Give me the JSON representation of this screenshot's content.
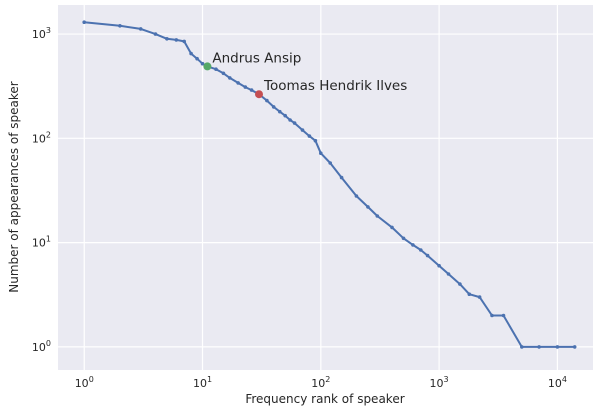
{
  "chart_data": {
    "type": "line",
    "title": "",
    "xlabel": "Frequency rank of speaker",
    "ylabel": "Number of appearances of speaker",
    "xscale": "log",
    "yscale": "log",
    "xlim": [
      0.6,
      20000
    ],
    "ylim": [
      0.6,
      1900
    ],
    "grid": true,
    "style": "seaborn-darkgrid",
    "xticks": [
      {
        "value": 1,
        "label": "10",
        "exp": "0"
      },
      {
        "value": 10,
        "label": "10",
        "exp": "1"
      },
      {
        "value": 100,
        "label": "10",
        "exp": "2"
      },
      {
        "value": 1000,
        "label": "10",
        "exp": "3"
      },
      {
        "value": 10000,
        "label": "10",
        "exp": "4"
      }
    ],
    "yticks": [
      {
        "value": 1,
        "label": "10",
        "exp": "0"
      },
      {
        "value": 10,
        "label": "10",
        "exp": "1"
      },
      {
        "value": 100,
        "label": "10",
        "exp": "2"
      },
      {
        "value": 1000,
        "label": "10",
        "exp": "3"
      }
    ],
    "series": [
      {
        "color": "#4c72b0",
        "x": [
          1,
          2,
          3,
          4,
          5,
          6,
          7,
          8,
          9,
          10,
          11,
          13,
          15,
          17,
          20,
          23,
          26,
          30,
          35,
          40,
          45,
          50,
          55,
          60,
          70,
          80,
          90,
          100,
          120,
          150,
          200,
          250,
          300,
          400,
          500,
          600,
          700,
          800,
          1000,
          1200,
          1500,
          1800,
          2200,
          2800,
          3500,
          5000,
          7000,
          10000,
          14000
        ],
        "y": [
          1300,
          1200,
          1120,
          1000,
          900,
          880,
          850,
          650,
          580,
          520,
          490,
          460,
          420,
          380,
          340,
          310,
          290,
          265,
          230,
          200,
          180,
          165,
          150,
          140,
          120,
          105,
          95,
          72,
          58,
          42,
          28,
          22,
          18,
          14,
          11,
          9.5,
          8.5,
          7.5,
          6,
          5,
          4,
          3.2,
          3,
          2,
          2,
          1,
          1,
          1,
          1
        ]
      }
    ],
    "annotations": [
      {
        "text": "Andrus Ansip",
        "x": 11,
        "y": 490,
        "color": "#55a868"
      },
      {
        "text": "Toomas Hendrik Ilves",
        "x": 30,
        "y": 265,
        "color": "#c44e52"
      }
    ]
  }
}
